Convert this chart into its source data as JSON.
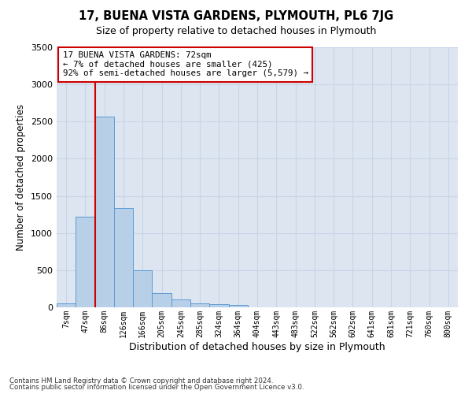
{
  "title1": "17, BUENA VISTA GARDENS, PLYMOUTH, PL6 7JG",
  "title2": "Size of property relative to detached houses in Plymouth",
  "xlabel": "Distribution of detached houses by size in Plymouth",
  "ylabel": "Number of detached properties",
  "footnote1": "Contains HM Land Registry data © Crown copyright and database right 2024.",
  "footnote2": "Contains public sector information licensed under the Open Government Licence v3.0.",
  "bin_labels": [
    "7sqm",
    "47sqm",
    "86sqm",
    "126sqm",
    "166sqm",
    "205sqm",
    "245sqm",
    "285sqm",
    "324sqm",
    "364sqm",
    "404sqm",
    "443sqm",
    "483sqm",
    "522sqm",
    "562sqm",
    "602sqm",
    "641sqm",
    "681sqm",
    "721sqm",
    "760sqm",
    "800sqm"
  ],
  "bar_values": [
    50,
    1220,
    2570,
    1340,
    500,
    195,
    110,
    50,
    45,
    30,
    0,
    0,
    0,
    0,
    0,
    0,
    0,
    0,
    0,
    0,
    0
  ],
  "bar_color": "#b8cfe8",
  "bar_edge_color": "#5b9bd5",
  "grid_color": "#c8d4e8",
  "annotation_text": "17 BUENA VISTA GARDENS: 72sqm\n← 7% of detached houses are smaller (425)\n92% of semi-detached houses are larger (5,579) →",
  "annotation_box_color": "#ffffff",
  "annotation_box_edge": "#cc0000",
  "vline_x": 1.5,
  "vline_color": "#cc0000",
  "ylim": [
    0,
    3500
  ],
  "yticks": [
    0,
    500,
    1000,
    1500,
    2000,
    2500,
    3000,
    3500
  ],
  "background_color": "#dde5f0"
}
